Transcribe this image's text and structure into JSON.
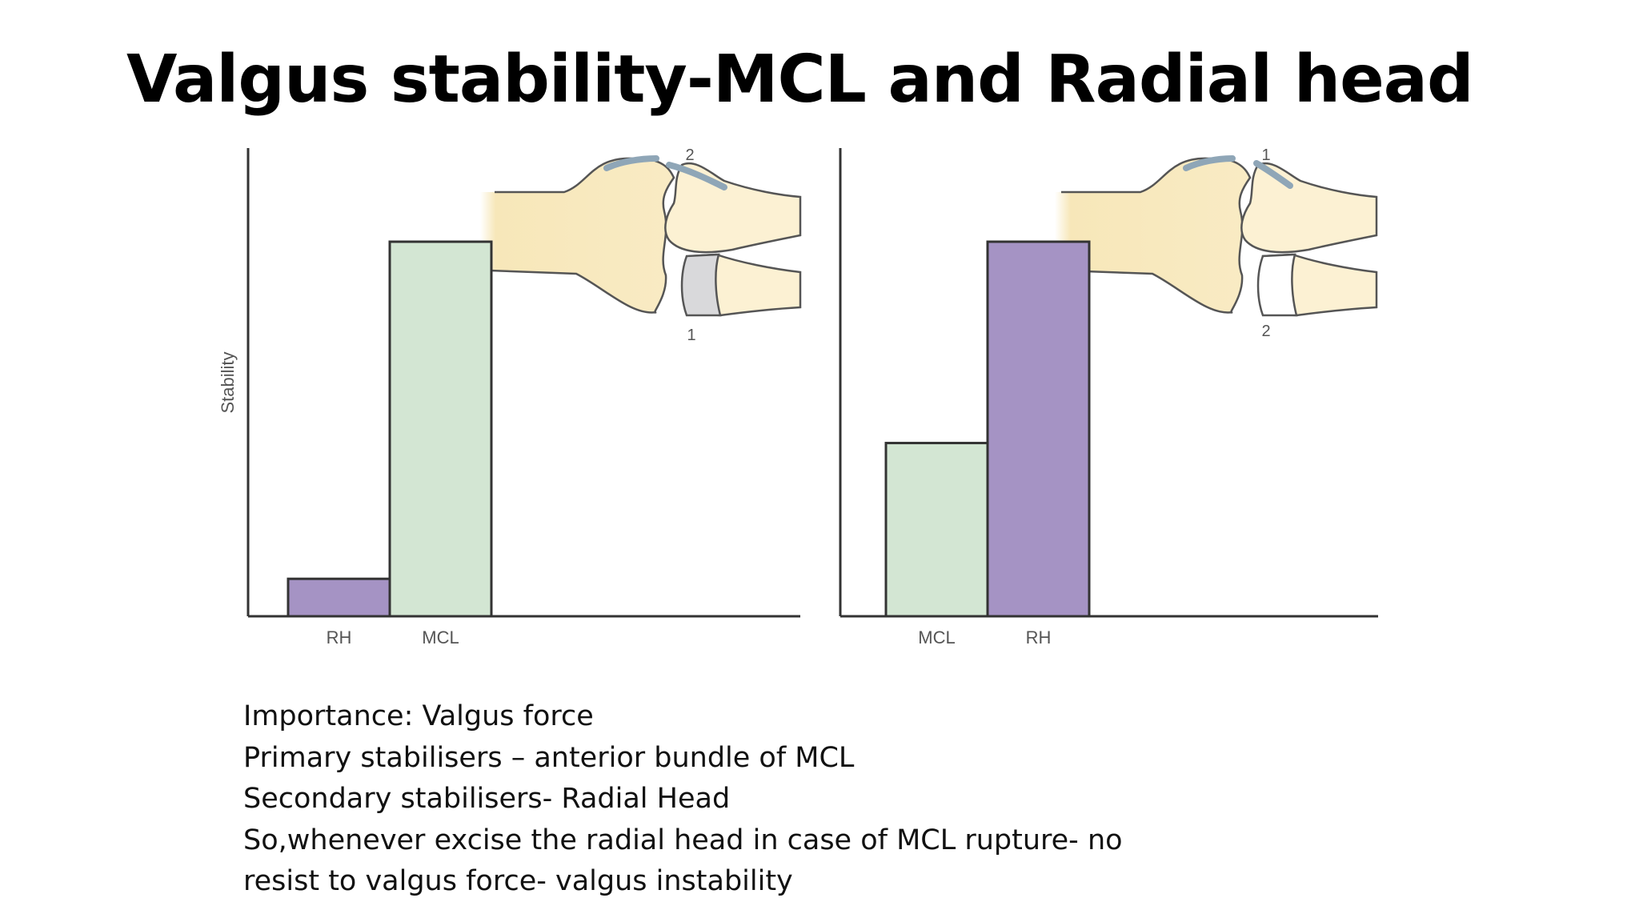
{
  "slide": {
    "title": "Valgus stability-MCL and Radial head",
    "notes": [
      "Importance: Valgus force",
      "Primary stabilisers – anterior bundle of MCL",
      "Secondary stabilisers- Radial Head",
      "So,whenever excise the radial head in case of MCL rupture- no",
      "resist to valgus force- valgus instability"
    ]
  },
  "colors": {
    "rh": "#a593c4",
    "mcl": "#d3e6d3",
    "bone": "#f7e7b9",
    "axis": "#333333"
  },
  "chart_data": [
    {
      "type": "bar",
      "title": "",
      "xlabel": "",
      "ylabel": "Stability",
      "categories": [
        "RH",
        "MCL"
      ],
      "values": [
        8,
        80
      ],
      "ylim": [
        0,
        100
      ],
      "bar_colors": [
        "#a593c4",
        "#d3e6d3"
      ],
      "annotations": [
        "2",
        "1"
      ]
    },
    {
      "type": "bar",
      "title": "",
      "xlabel": "",
      "ylabel": "",
      "categories": [
        "MCL",
        "RH"
      ],
      "values": [
        37,
        80
      ],
      "ylim": [
        0,
        100
      ],
      "bar_colors": [
        "#d3e6d3",
        "#a593c4"
      ],
      "annotations": [
        "1",
        "2"
      ]
    }
  ]
}
